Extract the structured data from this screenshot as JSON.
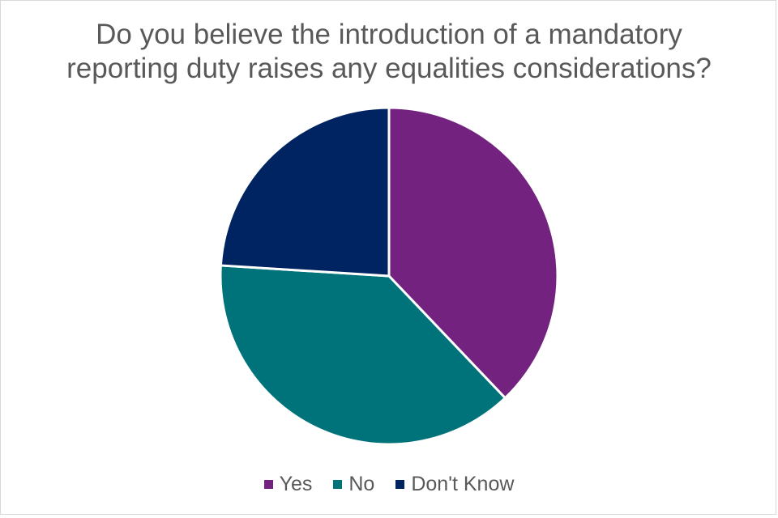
{
  "chart_data": {
    "type": "pie",
    "title_lines": [
      "Do you believe the introduction of a mandatory",
      "reporting duty raises any equalities considerations?"
    ],
    "categories": [
      "Yes",
      "No",
      "Don't Know"
    ],
    "values": [
      37.9,
      38.1,
      24.0
    ],
    "colors": [
      "#73227f",
      "#00737a",
      "#002361"
    ],
    "legend": "bottom"
  }
}
